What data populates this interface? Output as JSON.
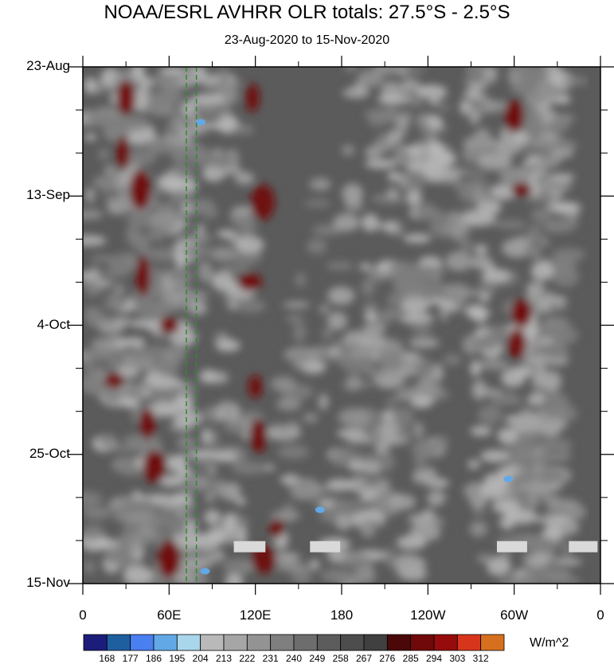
{
  "chart_data": {
    "type": "heatmap",
    "title": "NOAA/ESRL AVHRR OLR totals: 27.5°S - 2.5°S",
    "subtitle": "23-Aug-2020 to 15-Nov-2020",
    "xlabel": "",
    "ylabel": "",
    "x_ticks": [
      {
        "label": "0",
        "lon": 0
      },
      {
        "label": "60E",
        "lon": 60
      },
      {
        "label": "120E",
        "lon": 120
      },
      {
        "label": "180",
        "lon": 180
      },
      {
        "label": "120W",
        "lon": 240
      },
      {
        "label": "60W",
        "lon": 300
      },
      {
        "label": "0",
        "lon": 360
      }
    ],
    "y_ticks": [
      {
        "label": "23-Aug",
        "day": 0
      },
      {
        "label": "13-Sep",
        "day": 21
      },
      {
        "label": "4-Oct",
        "day": 42
      },
      {
        "label": "25-Oct",
        "day": 63
      },
      {
        "label": "15-Nov",
        "day": 84
      }
    ],
    "xlim": [
      0,
      360
    ],
    "ylim": [
      0,
      84
    ],
    "colorbar": {
      "units": "W/m^2",
      "levels": [
        "168",
        "177",
        "186",
        "195",
        "204",
        "213",
        "222",
        "231",
        "240",
        "249",
        "258",
        "267",
        "276",
        "285",
        "294",
        "303",
        "312"
      ],
      "colors": [
        "#1c1c7a",
        "#1e5fa0",
        "#4a7ff0",
        "#62a8e6",
        "#a9d6ea",
        "#b9b9b9",
        "#a6a6a6",
        "#939393",
        "#7f7f7f",
        "#6d6d6d",
        "#5c5c5c",
        "#4d4d4d",
        "#404040",
        "#4a0808",
        "#700a0a",
        "#960c0c",
        "#d8361c",
        "#d6701f"
      ]
    },
    "annotations": [
      {
        "type": "dashed-vertical-line",
        "lon": 72,
        "color": "#2e8b2e"
      },
      {
        "type": "dashed-vertical-line",
        "lon": 79,
        "color": "#2e8b2e"
      }
    ],
    "missing_data_bars": [
      {
        "lon_start": 105,
        "lon_end": 127,
        "day": 78
      },
      {
        "lon_start": 158,
        "lon_end": 179,
        "day": 78
      },
      {
        "lon_start": 288,
        "lon_end": 309,
        "day": 78
      },
      {
        "lon_start": 338,
        "lon_end": 358,
        "day": 78
      }
    ]
  }
}
